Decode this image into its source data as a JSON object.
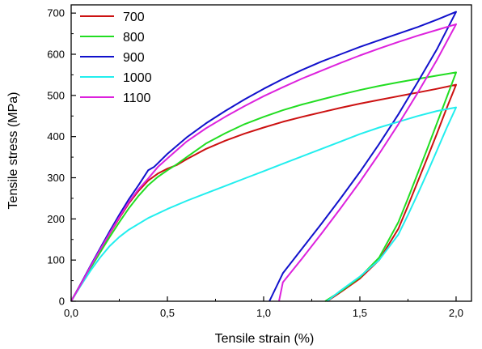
{
  "chart_data": {
    "type": "line",
    "title": "",
    "xlabel": "Tensile strain (%)",
    "ylabel": "Tensile stress (MPa)",
    "xlim": [
      0,
      2.08
    ],
    "ylim": [
      0,
      720
    ],
    "x_ticks": [
      0,
      0.5,
      1.0,
      1.5,
      2.0
    ],
    "x_tick_labels": [
      "0,0",
      "0,5",
      "1,0",
      "1,5",
      "2,0"
    ],
    "y_ticks": [
      0,
      100,
      200,
      300,
      400,
      500,
      600,
      700
    ],
    "y_tick_labels": [
      "0",
      "100",
      "200",
      "300",
      "400",
      "500",
      "600",
      "700"
    ],
    "grid": false,
    "legend_position": "top-left",
    "series": [
      {
        "name": "700",
        "color": "#cc1111",
        "points": [
          [
            0,
            0
          ],
          [
            0.05,
            42
          ],
          [
            0.1,
            84
          ],
          [
            0.15,
            124
          ],
          [
            0.2,
            164
          ],
          [
            0.25,
            202
          ],
          [
            0.3,
            238
          ],
          [
            0.35,
            268
          ],
          [
            0.4,
            293
          ],
          [
            0.45,
            310
          ],
          [
            0.5,
            322
          ],
          [
            0.55,
            331
          ],
          [
            0.6,
            345
          ],
          [
            0.7,
            370
          ],
          [
            0.8,
            390
          ],
          [
            0.9,
            407
          ],
          [
            1.0,
            422
          ],
          [
            1.1,
            436
          ],
          [
            1.2,
            448
          ],
          [
            1.3,
            459
          ],
          [
            1.4,
            470
          ],
          [
            1.5,
            480
          ],
          [
            1.6,
            489
          ],
          [
            1.7,
            498
          ],
          [
            1.8,
            507
          ],
          [
            1.9,
            516
          ],
          [
            2.0,
            526
          ],
          [
            1.95,
            468
          ],
          [
            1.9,
            407
          ],
          [
            1.85,
            348
          ],
          [
            1.8,
            290
          ],
          [
            1.75,
            232
          ],
          [
            1.7,
            176
          ],
          [
            1.6,
            100
          ],
          [
            1.5,
            55
          ],
          [
            1.4,
            22
          ],
          [
            1.33,
            0
          ]
        ]
      },
      {
        "name": "800",
        "color": "#22dd22",
        "points": [
          [
            0,
            0
          ],
          [
            0.05,
            40
          ],
          [
            0.1,
            80
          ],
          [
            0.15,
            118
          ],
          [
            0.2,
            156
          ],
          [
            0.25,
            192
          ],
          [
            0.3,
            226
          ],
          [
            0.35,
            256
          ],
          [
            0.4,
            282
          ],
          [
            0.45,
            302
          ],
          [
            0.5,
            318
          ],
          [
            0.55,
            333
          ],
          [
            0.6,
            350
          ],
          [
            0.7,
            383
          ],
          [
            0.8,
            408
          ],
          [
            0.9,
            430
          ],
          [
            1.0,
            448
          ],
          [
            1.1,
            464
          ],
          [
            1.2,
            478
          ],
          [
            1.3,
            490
          ],
          [
            1.4,
            502
          ],
          [
            1.5,
            513
          ],
          [
            1.6,
            523
          ],
          [
            1.7,
            532
          ],
          [
            1.8,
            540
          ],
          [
            1.9,
            548
          ],
          [
            2.0,
            556
          ],
          [
            1.95,
            494
          ],
          [
            1.9,
            432
          ],
          [
            1.85,
            370
          ],
          [
            1.8,
            310
          ],
          [
            1.75,
            250
          ],
          [
            1.7,
            192
          ],
          [
            1.6,
            106
          ],
          [
            1.5,
            58
          ],
          [
            1.4,
            24
          ],
          [
            1.32,
            0
          ]
        ]
      },
      {
        "name": "900",
        "color": "#1111cc",
        "points": [
          [
            0,
            0
          ],
          [
            0.05,
            42
          ],
          [
            0.1,
            86
          ],
          [
            0.15,
            128
          ],
          [
            0.2,
            170
          ],
          [
            0.25,
            210
          ],
          [
            0.3,
            248
          ],
          [
            0.35,
            282
          ],
          [
            0.4,
            318
          ],
          [
            0.43,
            326
          ],
          [
            0.45,
            335
          ],
          [
            0.5,
            358
          ],
          [
            0.6,
            398
          ],
          [
            0.7,
            432
          ],
          [
            0.8,
            462
          ],
          [
            0.9,
            490
          ],
          [
            1.0,
            516
          ],
          [
            1.1,
            540
          ],
          [
            1.2,
            562
          ],
          [
            1.3,
            582
          ],
          [
            1.4,
            600
          ],
          [
            1.5,
            618
          ],
          [
            1.6,
            634
          ],
          [
            1.7,
            650
          ],
          [
            1.8,
            666
          ],
          [
            1.9,
            684
          ],
          [
            2.0,
            703
          ],
          [
            1.9,
            612
          ],
          [
            1.8,
            532
          ],
          [
            1.7,
            454
          ],
          [
            1.6,
            382
          ],
          [
            1.5,
            314
          ],
          [
            1.4,
            250
          ],
          [
            1.3,
            188
          ],
          [
            1.2,
            128
          ],
          [
            1.1,
            68
          ],
          [
            1.03,
            0
          ]
        ]
      },
      {
        "name": "1000",
        "color": "#22eeee",
        "points": [
          [
            0,
            0
          ],
          [
            0.05,
            38
          ],
          [
            0.1,
            74
          ],
          [
            0.15,
            106
          ],
          [
            0.2,
            134
          ],
          [
            0.25,
            156
          ],
          [
            0.3,
            174
          ],
          [
            0.4,
            202
          ],
          [
            0.5,
            224
          ],
          [
            0.6,
            244
          ],
          [
            0.7,
            262
          ],
          [
            0.8,
            280
          ],
          [
            0.9,
            298
          ],
          [
            1.0,
            316
          ],
          [
            1.1,
            334
          ],
          [
            1.2,
            352
          ],
          [
            1.3,
            370
          ],
          [
            1.4,
            388
          ],
          [
            1.5,
            406
          ],
          [
            1.6,
            422
          ],
          [
            1.7,
            436
          ],
          [
            1.8,
            450
          ],
          [
            1.9,
            462
          ],
          [
            2.0,
            471
          ],
          [
            1.95,
            420
          ],
          [
            1.9,
            366
          ],
          [
            1.85,
            312
          ],
          [
            1.8,
            260
          ],
          [
            1.75,
            210
          ],
          [
            1.7,
            162
          ],
          [
            1.6,
            100
          ],
          [
            1.5,
            60
          ],
          [
            1.4,
            26
          ],
          [
            1.33,
            0
          ]
        ]
      },
      {
        "name": "1100",
        "color": "#dd22dd",
        "points": [
          [
            0,
            0
          ],
          [
            0.05,
            41
          ],
          [
            0.1,
            84
          ],
          [
            0.15,
            125
          ],
          [
            0.2,
            165
          ],
          [
            0.25,
            204
          ],
          [
            0.3,
            241
          ],
          [
            0.35,
            272
          ],
          [
            0.4,
            298
          ],
          [
            0.45,
            326
          ],
          [
            0.5,
            347
          ],
          [
            0.6,
            388
          ],
          [
            0.7,
            420
          ],
          [
            0.8,
            448
          ],
          [
            0.9,
            474
          ],
          [
            1.0,
            498
          ],
          [
            1.1,
            520
          ],
          [
            1.2,
            541
          ],
          [
            1.3,
            560
          ],
          [
            1.4,
            579
          ],
          [
            1.5,
            597
          ],
          [
            1.6,
            614
          ],
          [
            1.7,
            630
          ],
          [
            1.8,
            645
          ],
          [
            1.9,
            659
          ],
          [
            2.0,
            673
          ],
          [
            1.9,
            586
          ],
          [
            1.8,
            506
          ],
          [
            1.7,
            430
          ],
          [
            1.6,
            358
          ],
          [
            1.5,
            290
          ],
          [
            1.4,
            226
          ],
          [
            1.3,
            164
          ],
          [
            1.2,
            104
          ],
          [
            1.1,
            46
          ],
          [
            1.08,
            0
          ]
        ]
      }
    ]
  }
}
